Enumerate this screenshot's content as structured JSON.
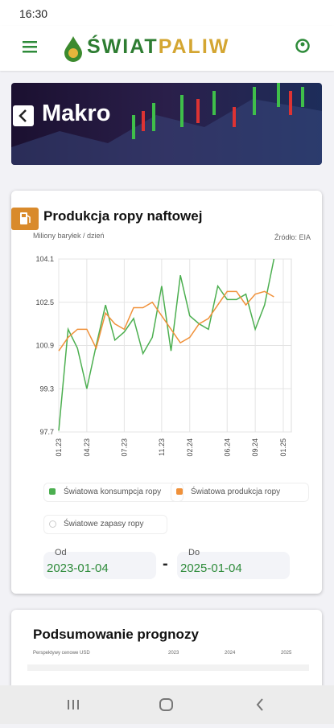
{
  "status_bar": {
    "time": "16:30"
  },
  "header": {
    "brand_part1": "ŚWIAT",
    "brand_part2": "PALIW"
  },
  "banner": {
    "title": "Makro"
  },
  "chart_card": {
    "title": "Produkcja ropy naftowej",
    "source": "Źródło: EIA",
    "extra_legend": "Światowe zapasy ropy",
    "date_from_label": "Od",
    "date_from": "2023-01-04",
    "date_separator": "-",
    "date_to_label": "Do",
    "date_to": "2025-01-04"
  },
  "chart_data": {
    "type": "line",
    "ylabel": "Miliony baryłek / dzień",
    "categories": [
      "01.23",
      null,
      null,
      "04.23",
      null,
      null,
      null,
      "07.23",
      null,
      null,
      null,
      "11.23",
      null,
      null,
      "02.24",
      null,
      null,
      null,
      "06.24",
      null,
      null,
      "09.24",
      null,
      null,
      "01.25"
    ],
    "series": [
      {
        "name": "Światowa konsumpcja ropy",
        "color": "#4caf50",
        "values": [
          97.75,
          101.5,
          100.8,
          99.3,
          100.9,
          102.4,
          101.1,
          101.4,
          101.9,
          100.6,
          101.2,
          103.1,
          100.7,
          103.5,
          102.0,
          101.7,
          101.5,
          103.1,
          102.6,
          102.6,
          102.8,
          101.5,
          102.4,
          104.1,
          null
        ]
      },
      {
        "name": "Światowa produkcja ropy",
        "color": "#f0913a",
        "values": [
          100.7,
          101.2,
          101.5,
          101.5,
          100.8,
          102.1,
          101.7,
          101.5,
          102.3,
          102.3,
          102.5,
          102.0,
          101.5,
          101.0,
          101.2,
          101.7,
          101.9,
          102.4,
          102.9,
          102.9,
          102.4,
          102.8,
          102.9,
          102.7,
          null
        ]
      }
    ],
    "ylim": [
      97.7,
      104.1
    ],
    "yticks": [
      97.7,
      99.3,
      100.9,
      102.5,
      104.1
    ],
    "grid": true
  },
  "summary_card": {
    "title": "Podsumowanie prognozy",
    "table_header": [
      "Perspektywy cenowe USD",
      "2023",
      "2024",
      "2025"
    ]
  }
}
